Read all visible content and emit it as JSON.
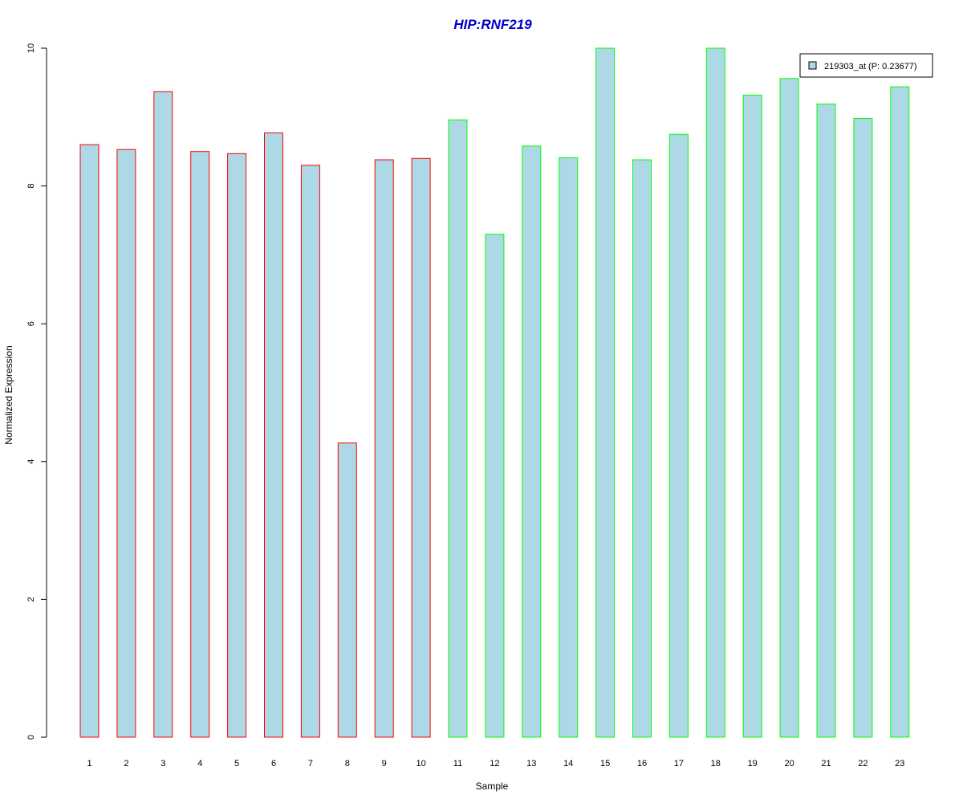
{
  "chart_data": {
    "type": "bar",
    "title": "HIP:RNF219",
    "title_color": "#0000CC",
    "xlabel": "Sample",
    "ylabel": "Normalized Expression",
    "ylim": [
      0,
      10
    ],
    "y_ticks": [
      0,
      2,
      4,
      6,
      8,
      10
    ],
    "grid": false,
    "legend_position": "top-right",
    "bar_fill": "#ADD8E6",
    "categories": [
      "1",
      "2",
      "3",
      "4",
      "5",
      "6",
      "7",
      "8",
      "9",
      "10",
      "11",
      "12",
      "13",
      "14",
      "15",
      "16",
      "17",
      "18",
      "19",
      "20",
      "21",
      "22",
      "23"
    ],
    "series": [
      {
        "name": "219303_at (P: 0.23677)",
        "values": [
          8.6,
          8.53,
          9.37,
          8.5,
          8.47,
          8.77,
          8.3,
          4.27,
          8.38,
          8.4,
          8.96,
          7.3,
          8.58,
          8.41,
          10.0,
          8.38,
          8.75,
          10.0,
          9.32,
          9.56,
          9.19,
          8.98,
          9.44
        ]
      }
    ],
    "bar_border_colors": [
      "#FF0000",
      "#FF0000",
      "#FF0000",
      "#FF0000",
      "#FF0000",
      "#FF0000",
      "#FF0000",
      "#FF0000",
      "#FF0000",
      "#FF0000",
      "#00FF00",
      "#00FF00",
      "#00FF00",
      "#00FF00",
      "#00FF00",
      "#00FF00",
      "#00FF00",
      "#00FF00",
      "#00FF00",
      "#00FF00",
      "#00FF00",
      "#00FF00",
      "#00FF00"
    ]
  }
}
